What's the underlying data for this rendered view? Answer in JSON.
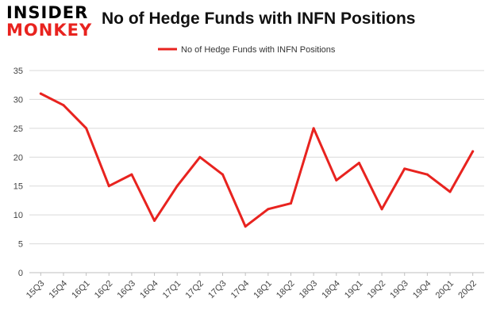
{
  "logo": {
    "line1": "INSIDER",
    "line2": "MONKEY"
  },
  "chart_data": {
    "type": "line",
    "title": "No of Hedge Funds with INFN Positions",
    "categories": [
      "15Q3",
      "15Q4",
      "16Q1",
      "16Q2",
      "16Q3",
      "16Q4",
      "17Q1",
      "17Q2",
      "17Q3",
      "17Q4",
      "18Q1",
      "18Q2",
      "18Q3",
      "18Q4",
      "19Q1",
      "19Q2",
      "19Q3",
      "19Q4",
      "20Q1",
      "20Q2"
    ],
    "series": [
      {
        "name": "No of Hedge Funds with INFN Positions",
        "values": [
          31,
          29,
          25,
          15,
          17,
          9,
          15,
          20,
          17,
          8,
          11,
          12,
          25,
          16,
          19,
          11,
          18,
          17,
          14,
          21
        ],
        "color": "#e8231f"
      }
    ],
    "ylim": [
      0,
      35
    ],
    "yticks": [
      "0",
      "5",
      "10",
      "15",
      "20",
      "25",
      "30",
      "35"
    ],
    "grid": true,
    "legend_position": "top-center",
    "xlabel": "",
    "ylabel": ""
  }
}
